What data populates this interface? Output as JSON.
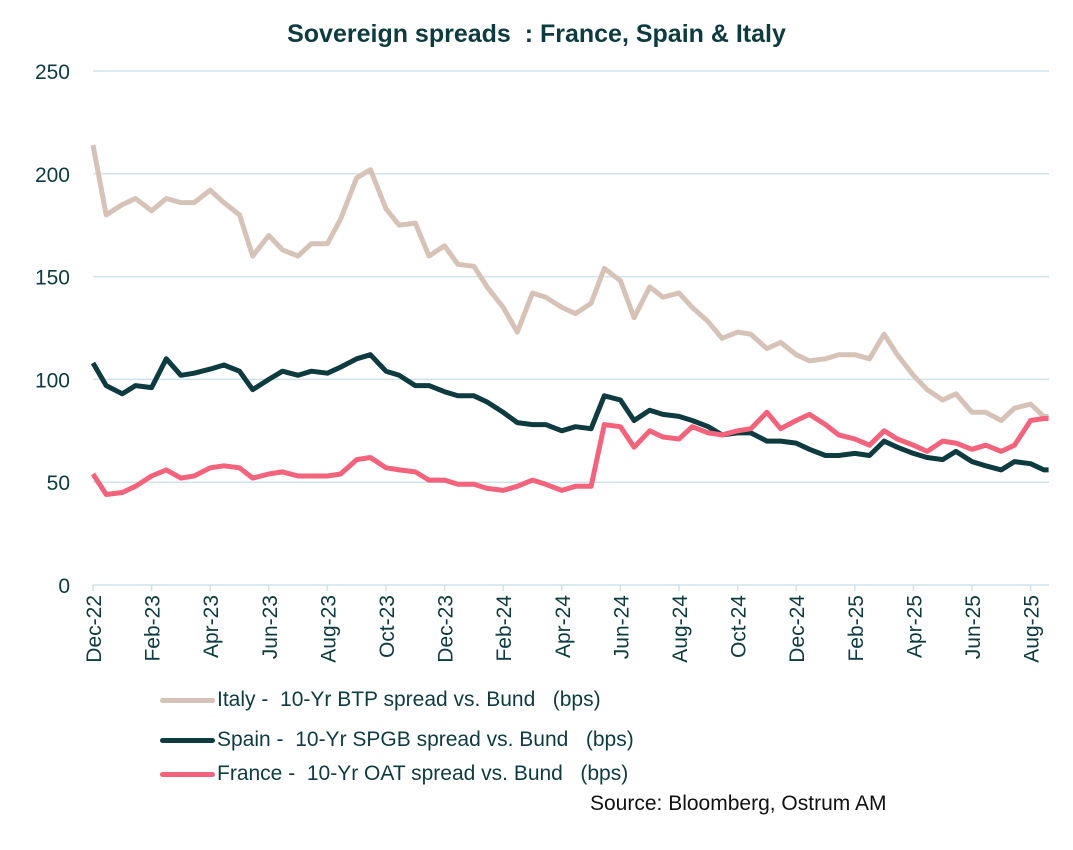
{
  "chart_data": {
    "type": "line",
    "title": "Sovereign spreads  : France, Spain & Italy",
    "xlabel": "",
    "ylabel": "",
    "ylim": [
      0,
      250
    ],
    "yticks": [
      "0",
      "50",
      "100",
      "150",
      "200",
      "250"
    ],
    "xticks": [
      "Dec-22",
      "Feb-23",
      "Apr-23",
      "Jun-23",
      "Aug-23",
      "Oct-23",
      "Dec-23",
      "Feb-24",
      "Apr-24",
      "Jun-24",
      "Aug-24",
      "Oct-24",
      "Dec-24",
      "Feb-25",
      "Apr-25",
      "Jun-25",
      "Aug-25"
    ],
    "xrange": [
      "2022-12-01",
      "2025-08-20"
    ],
    "grid": "horizontal",
    "legend_position": "bottom",
    "x": [
      "2022-12-01",
      "2022-12-15",
      "2023-01-01",
      "2023-01-15",
      "2023-02-01",
      "2023-02-15",
      "2023-03-01",
      "2023-03-15",
      "2023-04-01",
      "2023-04-15",
      "2023-05-01",
      "2023-05-15",
      "2023-06-01",
      "2023-06-15",
      "2023-07-01",
      "2023-07-15",
      "2023-08-01",
      "2023-08-15",
      "2023-09-01",
      "2023-09-15",
      "2023-10-01",
      "2023-10-15",
      "2023-11-01",
      "2023-11-15",
      "2023-12-01",
      "2023-12-15",
      "2024-01-01",
      "2024-01-15",
      "2024-02-01",
      "2024-02-15",
      "2024-03-01",
      "2024-03-15",
      "2024-04-01",
      "2024-04-15",
      "2024-05-01",
      "2024-05-15",
      "2024-06-01",
      "2024-06-15",
      "2024-07-01",
      "2024-07-15",
      "2024-08-01",
      "2024-08-15",
      "2024-09-01",
      "2024-09-15",
      "2024-10-01",
      "2024-10-15",
      "2024-11-01",
      "2024-11-15",
      "2024-12-01",
      "2024-12-15",
      "2025-01-01",
      "2025-01-15",
      "2025-02-01",
      "2025-02-15",
      "2025-03-01",
      "2025-03-15",
      "2025-04-01",
      "2025-04-15",
      "2025-05-01",
      "2025-05-15",
      "2025-06-01",
      "2025-06-15",
      "2025-07-01",
      "2025-07-15",
      "2025-08-01",
      "2025-08-15"
    ],
    "series": [
      {
        "name": "Italy -  10-Yr BTP spread vs. Bund   (bps)",
        "color": "#d6c2b6",
        "values": [
          214,
          180,
          185,
          188,
          182,
          188,
          186,
          186,
          192,
          186,
          180,
          160,
          170,
          163,
          160,
          166,
          166,
          178,
          198,
          202,
          183,
          175,
          176,
          160,
          165,
          156,
          155,
          145,
          135,
          123,
          142,
          140,
          135,
          132,
          137,
          154,
          148,
          130,
          145,
          140,
          142,
          135,
          128,
          120,
          123,
          122,
          115,
          118,
          112,
          109,
          110,
          112,
          112,
          110,
          122,
          112,
          102,
          95,
          90,
          93,
          84,
          84,
          80,
          86,
          88,
          82
        ]
      },
      {
        "name": "Spain -  10-Yr SPGB spread vs. Bund   (bps)",
        "color": "#0d3b40",
        "values": [
          108,
          97,
          93,
          97,
          96,
          110,
          102,
          103,
          105,
          107,
          104,
          95,
          100,
          104,
          102,
          104,
          103,
          106,
          110,
          112,
          104,
          102,
          97,
          97,
          94,
          92,
          92,
          89,
          84,
          79,
          78,
          78,
          75,
          77,
          76,
          92,
          90,
          80,
          85,
          83,
          82,
          80,
          77,
          73,
          74,
          74,
          70,
          70,
          69,
          66,
          63,
          63,
          64,
          63,
          70,
          67,
          64,
          62,
          61,
          65,
          60,
          58,
          56,
          60,
          59,
          56
        ]
      },
      {
        "name": "France -  10-Yr OAT spread vs. Bund   (bps)",
        "color": "#f4637c",
        "values": [
          54,
          44,
          45,
          48,
          53,
          56,
          52,
          53,
          57,
          58,
          57,
          52,
          54,
          55,
          53,
          53,
          53,
          54,
          61,
          62,
          57,
          56,
          55,
          51,
          51,
          49,
          49,
          47,
          46,
          48,
          51,
          49,
          46,
          48,
          48,
          78,
          77,
          67,
          75,
          72,
          71,
          77,
          74,
          73,
          75,
          76,
          84,
          76,
          80,
          83,
          78,
          73,
          71,
          68,
          75,
          71,
          68,
          65,
          70,
          69,
          66,
          68,
          65,
          68,
          80,
          81
        ]
      }
    ],
    "source": "Source: Bloomberg, Ostrum AM"
  }
}
